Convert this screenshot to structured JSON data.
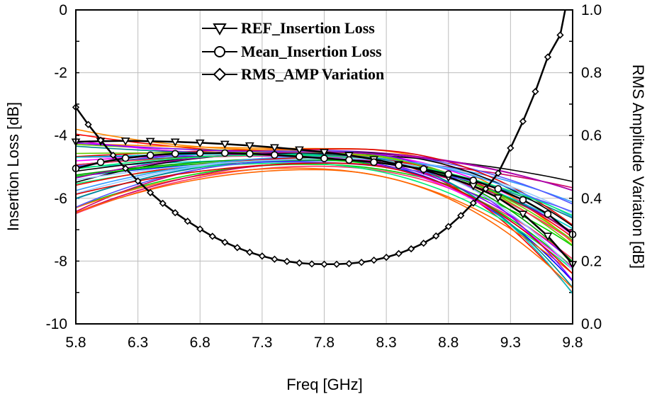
{
  "chart_data": {
    "type": "line",
    "xlabel": "Freq [GHz]",
    "ylabel_left": "Insertion Loss [dB]",
    "ylabel_right": "RMS Amplitude Variation [dB]",
    "xlim": [
      5.8,
      9.8
    ],
    "ylim_left": [
      -10,
      0
    ],
    "ylim_right": [
      0.0,
      1.0
    ],
    "x_ticks": [
      "5.8",
      "6.3",
      "6.8",
      "7.3",
      "7.8",
      "8.3",
      "8.8",
      "9.3",
      "9.8"
    ],
    "y_left_ticks": [
      "0",
      "-2",
      "-4",
      "-6",
      "-8",
      "-10"
    ],
    "y_right_ticks": [
      "1.0",
      "0.8",
      "0.6",
      "0.4",
      "0.2",
      "0.0"
    ],
    "grid": true,
    "legend_position": "top-center",
    "legend": [
      {
        "label": "REF_Insertion Loss",
        "marker": "triangle-down"
      },
      {
        "label": "Mean_Insertion Loss",
        "marker": "circle"
      },
      {
        "label": "RMS_AMP Variation",
        "marker": "diamond"
      }
    ],
    "series": [
      {
        "name": "REF_Insertion Loss",
        "axis": "left",
        "marker": "triangle-down",
        "x": [
          5.8,
          6.0,
          6.2,
          6.4,
          6.6,
          6.8,
          7.0,
          7.2,
          7.4,
          7.6,
          7.8,
          8.0,
          8.2,
          8.4,
          8.6,
          8.8,
          9.0,
          9.2,
          9.4,
          9.6,
          9.8
        ],
        "y": [
          -4.2,
          -4.18,
          -4.17,
          -4.18,
          -4.2,
          -4.23,
          -4.27,
          -4.32,
          -4.38,
          -4.45,
          -4.53,
          -4.63,
          -4.76,
          -4.92,
          -5.1,
          -5.33,
          -5.6,
          -5.98,
          -6.5,
          -7.2,
          -8.1
        ]
      },
      {
        "name": "Mean_Insertion Loss",
        "axis": "left",
        "marker": "circle",
        "x": [
          5.8,
          6.0,
          6.2,
          6.4,
          6.6,
          6.8,
          7.0,
          7.2,
          7.4,
          7.6,
          7.8,
          8.0,
          8.2,
          8.4,
          8.6,
          8.8,
          9.0,
          9.2,
          9.4,
          9.6,
          9.8
        ],
        "y": [
          -5.05,
          -4.85,
          -4.72,
          -4.63,
          -4.58,
          -4.56,
          -4.56,
          -4.58,
          -4.62,
          -4.67,
          -4.73,
          -4.78,
          -4.85,
          -4.95,
          -5.07,
          -5.23,
          -5.43,
          -5.7,
          -6.05,
          -6.5,
          -7.15
        ]
      },
      {
        "name": "RMS_AMP Variation",
        "axis": "right",
        "marker": "diamond",
        "x": [
          5.8,
          5.9,
          6.0,
          6.1,
          6.2,
          6.3,
          6.4,
          6.5,
          6.6,
          6.7,
          6.8,
          6.9,
          7.0,
          7.1,
          7.2,
          7.3,
          7.4,
          7.5,
          7.6,
          7.7,
          7.8,
          7.9,
          8.0,
          8.1,
          8.2,
          8.3,
          8.4,
          8.5,
          8.6,
          8.7,
          8.8,
          8.9,
          9.0,
          9.1,
          9.2,
          9.3,
          9.4,
          9.5,
          9.6,
          9.7
        ],
        "y": [
          0.69,
          0.635,
          0.585,
          0.537,
          0.495,
          0.455,
          0.418,
          0.384,
          0.354,
          0.327,
          0.302,
          0.279,
          0.26,
          0.243,
          0.228,
          0.216,
          0.206,
          0.199,
          0.194,
          0.191,
          0.19,
          0.19,
          0.192,
          0.196,
          0.203,
          0.212,
          0.224,
          0.239,
          0.257,
          0.28,
          0.31,
          0.345,
          0.385,
          0.43,
          0.48,
          0.56,
          0.645,
          0.74,
          0.85,
          0.92
        ]
      }
    ],
    "spread": {
      "description_count": 40,
      "colors": [
        "#00d000",
        "#ff0000",
        "#0000ff",
        "#ff00ff",
        "#00c8c8",
        "#000000",
        "#ff8800",
        "#8800ff",
        "#00a000",
        "#cc0066",
        "#3399ff",
        "#66cc00",
        "#ff3366",
        "#008888",
        "#aa00aa",
        "#ff6600",
        "#5555ff",
        "#00ee77",
        "#dd0000",
        "#99ccff"
      ],
      "start_range": [
        -3.8,
        -6.5
      ],
      "mid_range": [
        -4.2,
        -5.1
      ],
      "end_range": [
        -5.0,
        -9.6
      ]
    }
  }
}
